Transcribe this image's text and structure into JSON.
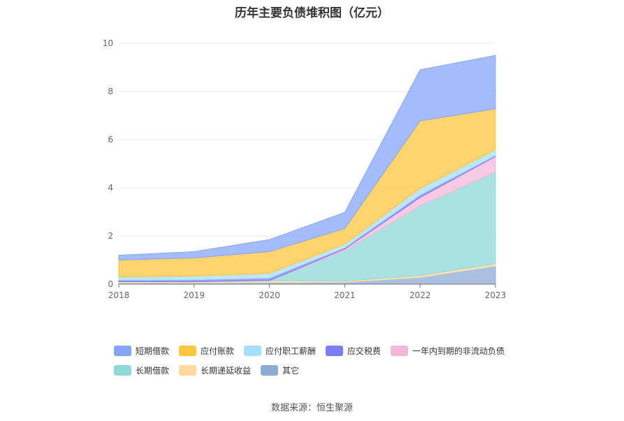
{
  "chart_data": {
    "type": "area",
    "stacked": true,
    "title": "历年主要负债堆积图（亿元）",
    "categories": [
      "2018",
      "2019",
      "2020",
      "2021",
      "2022",
      "2023"
    ],
    "ylim": [
      0,
      10
    ],
    "yticks": [
      "0",
      "2",
      "4",
      "6",
      "8",
      "10"
    ],
    "grid": true,
    "legend_position": "bottom",
    "series": [
      {
        "name": "其它",
        "color": "#8eabd6",
        "values": [
          0.05,
          0.05,
          0.07,
          0.08,
          0.28,
          0.75
        ]
      },
      {
        "name": "长期递延收益",
        "color": "#ffd89e",
        "values": [
          0.05,
          0.05,
          0.08,
          0.05,
          0.08,
          0.1
        ]
      },
      {
        "name": "长期借款",
        "color": "#8ed8d8",
        "values": [
          0.0,
          0.0,
          0.0,
          1.25,
          2.89,
          3.8
        ]
      },
      {
        "name": "一年内到期的非流动负债",
        "color": "#f1b8d8",
        "values": [
          0.0,
          0.0,
          0.0,
          0.08,
          0.35,
          0.65
        ]
      },
      {
        "name": "应交税费",
        "color": "#7b7ef2",
        "values": [
          0.07,
          0.08,
          0.1,
          0.05,
          0.1,
          0.04
        ]
      },
      {
        "name": "应付职工薪酬",
        "color": "#a6dff8",
        "values": [
          0.13,
          0.16,
          0.2,
          0.15,
          0.28,
          0.24
        ]
      },
      {
        "name": "应付账款",
        "color": "#ffc53d",
        "values": [
          0.7,
          0.75,
          0.9,
          0.65,
          2.8,
          1.7
        ]
      },
      {
        "name": "短期借款",
        "color": "#85a6f7",
        "values": [
          0.2,
          0.26,
          0.5,
          0.67,
          2.12,
          2.22
        ]
      }
    ]
  },
  "legend": [
    {
      "label": "短期借款",
      "color": "#85a6f7"
    },
    {
      "label": "应付账款",
      "color": "#ffc53d"
    },
    {
      "label": "应付职工薪酬",
      "color": "#a6dff8"
    },
    {
      "label": "应交税费",
      "color": "#7b7ef2"
    },
    {
      "label": "一年内到期的非流动负债",
      "color": "#f1b8d8"
    },
    {
      "label": "长期借款",
      "color": "#8ed8d8"
    },
    {
      "label": "长期递延收益",
      "color": "#ffd89e"
    },
    {
      "label": "其它",
      "color": "#8eabd6"
    }
  ],
  "source": "数据来源：恒生聚源"
}
